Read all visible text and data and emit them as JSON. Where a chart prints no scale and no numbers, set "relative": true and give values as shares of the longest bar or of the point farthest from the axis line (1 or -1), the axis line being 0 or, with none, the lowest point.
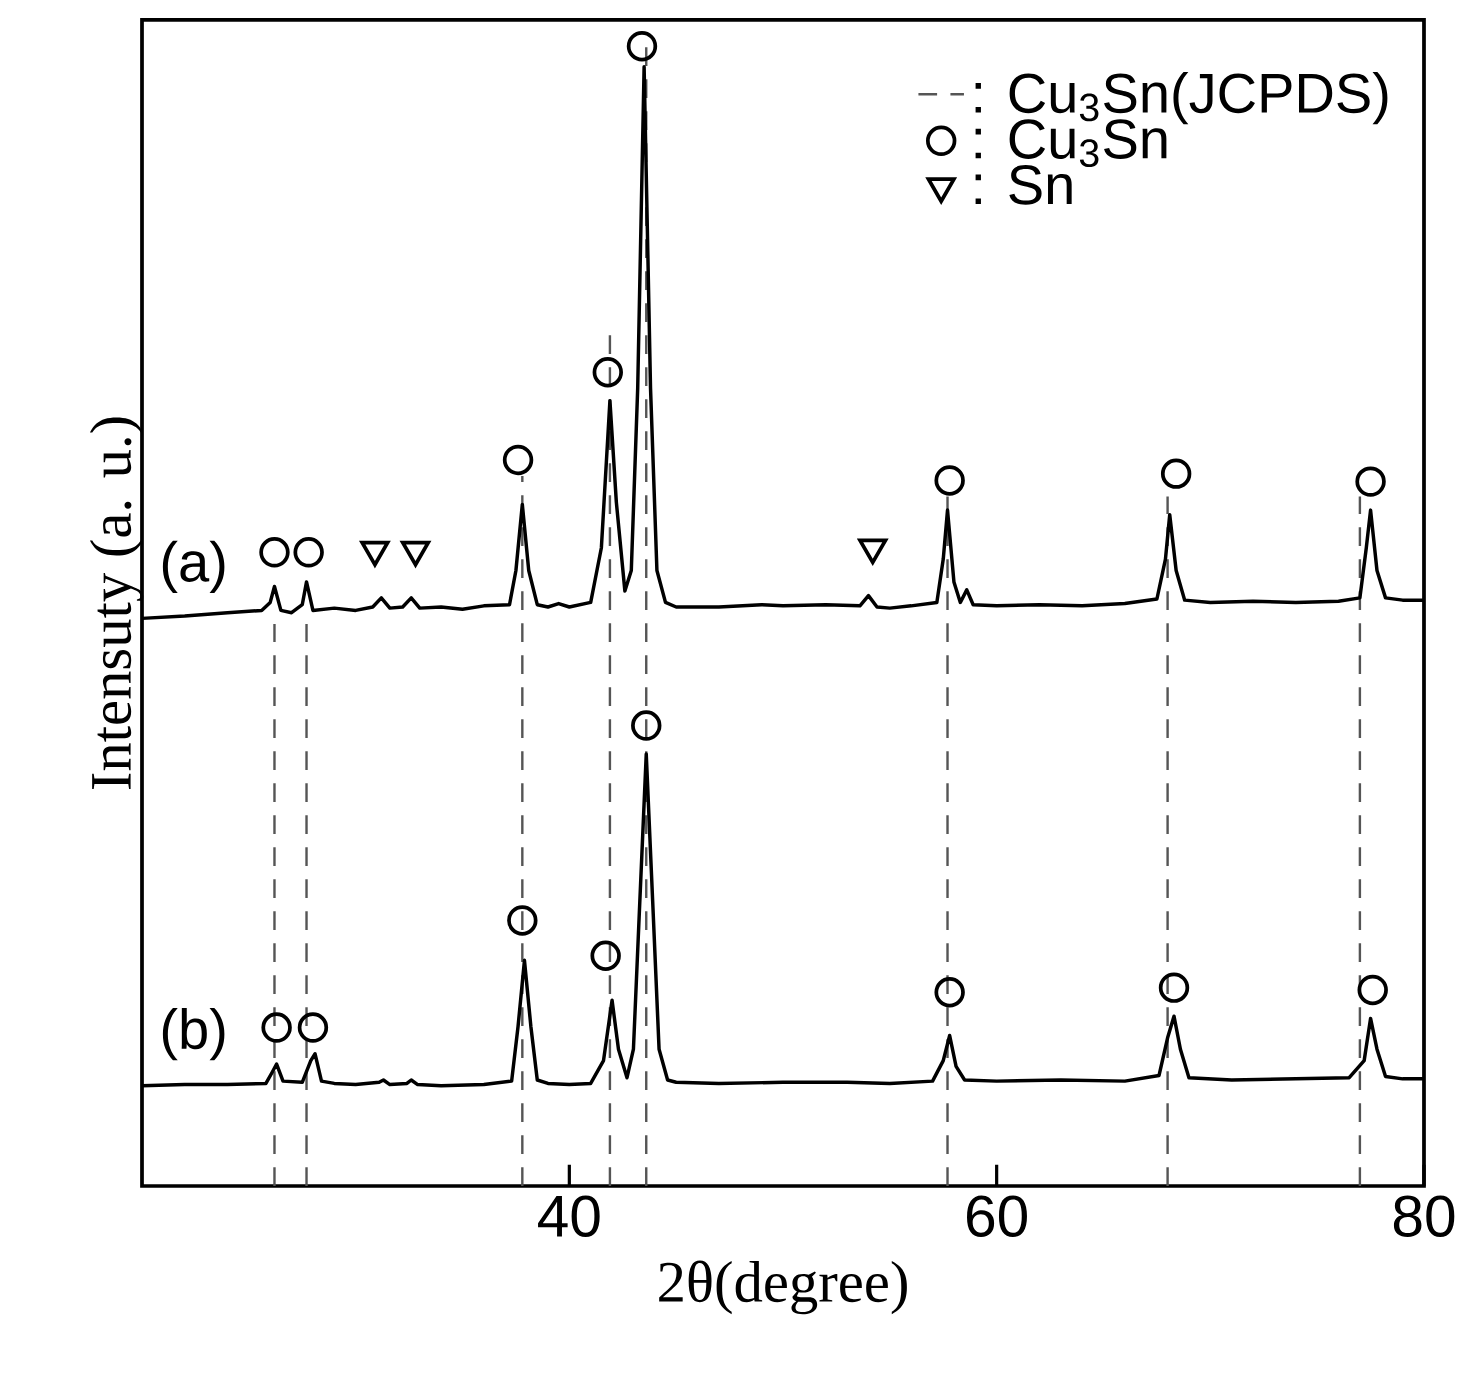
{
  "chart_data": {
    "type": "line",
    "relative": true,
    "xlabel": "2θ(degree)",
    "ylabel": "Intensuty (a. u.)",
    "xlim": [
      20,
      80
    ],
    "xticks": [
      40,
      60,
      80
    ],
    "tick_labels": "x",
    "legend": "top right",
    "annotations": [
      "(a)",
      "(b)"
    ],
    "series": [
      {
        "name": ": Cu$_{3}$Sn(JCPDS)",
        "line_style": "dashed",
        "color": "#555555",
        "marker": "none",
        "x": [
          26.2,
          26.2,
          null,
          27.7,
          27.7,
          null,
          37.8,
          37.8,
          null,
          41.9,
          41.9,
          null,
          43.6,
          43.6,
          null,
          57.7,
          57.7,
          null,
          68.0,
          68.0,
          null,
          77.0,
          77.0
        ],
        "values": [
          0,
          0.493,
          null,
          0,
          0.493,
          null,
          0,
          0.623,
          null,
          0,
          0.747,
          null,
          0,
          1.0,
          null,
          0,
          0.605,
          null,
          0,
          0.605,
          null,
          0,
          0.605
        ]
      },
      {
        "name": ": Cu$_{3}$Sn",
        "type": "scatter",
        "marker": "circle",
        "color": "#000000",
        "x": [
          26.2,
          27.8,
          37.6,
          41.8,
          43.4,
          57.8,
          68.4,
          77.5,
          26.3,
          28.0,
          37.8,
          41.7,
          43.6,
          57.8,
          68.3,
          77.6
        ],
        "values": [
          0.556,
          0.556,
          0.637,
          0.714,
          1.0,
          0.619,
          0.625,
          0.618,
          0.139,
          0.139,
          0.233,
          0.202,
          0.404,
          0.17,
          0.174,
          0.172
        ]
      },
      {
        "name": ": Sn",
        "type": "scatter",
        "marker": "triangle",
        "color": "#000000",
        "x": [
          30.9,
          32.8,
          54.2
        ],
        "values": [
          0.558,
          0.558,
          0.56
        ]
      },
      {
        "type": "line",
        "color": "#000000",
        "marker": "none",
        "line_style": "solid",
        "x": [
          20,
          22,
          24,
          25.6,
          26.0,
          26.2,
          26.5,
          27.0,
          27.5,
          27.7,
          28.0,
          29,
          30,
          30.8,
          31.2,
          31.6,
          32.2,
          32.6,
          33.0,
          34,
          35,
          36,
          37.2,
          37.5,
          37.8,
          38.1,
          38.5,
          39,
          39.5,
          40,
          41,
          41.5,
          41.9,
          42.2,
          42.6,
          42.9,
          43.2,
          43.5,
          43.8,
          44.1,
          44.5,
          45,
          47,
          49,
          50,
          52,
          53.6,
          54.0,
          54.4,
          55,
          56,
          57.2,
          57.5,
          57.7,
          58.0,
          58.3,
          58.6,
          58.9,
          60,
          62,
          64,
          66,
          67.5,
          67.9,
          68.1,
          68.4,
          68.8,
          70,
          72,
          74,
          76,
          77.0,
          77.3,
          77.5,
          77.8,
          78.2,
          79,
          80
        ],
        "values": [
          0.498,
          0.5,
          0.503,
          0.505,
          0.512,
          0.526,
          0.505,
          0.503,
          0.51,
          0.53,
          0.505,
          0.507,
          0.505,
          0.508,
          0.516,
          0.507,
          0.508,
          0.516,
          0.507,
          0.508,
          0.506,
          0.509,
          0.51,
          0.54,
          0.598,
          0.54,
          0.51,
          0.508,
          0.511,
          0.508,
          0.512,
          0.56,
          0.689,
          0.6,
          0.522,
          0.54,
          0.7,
          0.982,
          0.7,
          0.54,
          0.512,
          0.508,
          0.508,
          0.51,
          0.509,
          0.51,
          0.509,
          0.518,
          0.508,
          0.507,
          0.509,
          0.512,
          0.55,
          0.593,
          0.53,
          0.512,
          0.523,
          0.51,
          0.509,
          0.51,
          0.509,
          0.511,
          0.515,
          0.55,
          0.589,
          0.54,
          0.514,
          0.512,
          0.513,
          0.512,
          0.513,
          0.516,
          0.56,
          0.593,
          0.54,
          0.516,
          0.514,
          0.514
        ]
      },
      {
        "type": "line",
        "color": "#000000",
        "marker": "none",
        "line_style": "solid",
        "x": [
          20,
          22,
          24,
          25.8,
          26.1,
          26.3,
          26.6,
          27.5,
          27.9,
          28.1,
          28.4,
          29,
          30,
          31.1,
          31.3,
          31.6,
          32.4,
          32.6,
          32.9,
          34,
          36,
          37.3,
          37.6,
          37.9,
          38.2,
          38.5,
          39,
          40,
          41,
          41.6,
          42.0,
          42.3,
          42.7,
          43.0,
          43.3,
          43.6,
          43.9,
          44.2,
          44.6,
          45,
          47,
          50,
          53,
          55,
          57,
          57.5,
          57.8,
          58.1,
          58.5,
          60,
          63,
          66,
          67.6,
          68.0,
          68.3,
          68.6,
          69,
          71,
          74,
          76.5,
          77.2,
          77.5,
          77.8,
          78.2,
          79,
          80
        ],
        "values": [
          0.088,
          0.089,
          0.089,
          0.09,
          0.1,
          0.107,
          0.092,
          0.091,
          0.11,
          0.116,
          0.092,
          0.09,
          0.089,
          0.091,
          0.093,
          0.089,
          0.09,
          0.093,
          0.089,
          0.088,
          0.089,
          0.092,
          0.14,
          0.198,
          0.14,
          0.093,
          0.09,
          0.089,
          0.09,
          0.11,
          0.163,
          0.12,
          0.095,
          0.12,
          0.25,
          0.379,
          0.25,
          0.12,
          0.093,
          0.091,
          0.09,
          0.091,
          0.091,
          0.09,
          0.092,
          0.11,
          0.132,
          0.105,
          0.093,
          0.092,
          0.093,
          0.092,
          0.097,
          0.13,
          0.149,
          0.12,
          0.095,
          0.093,
          0.094,
          0.095,
          0.11,
          0.147,
          0.12,
          0.096,
          0.094,
          0.094
        ]
      }
    ]
  }
}
